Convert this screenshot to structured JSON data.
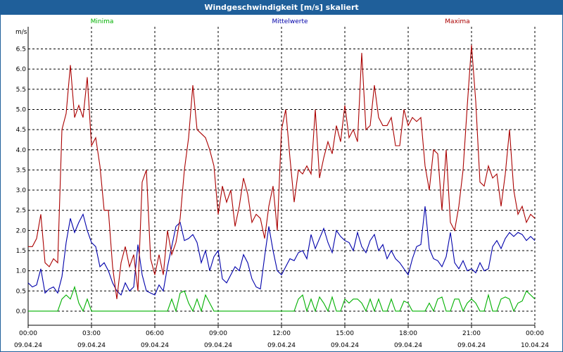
{
  "window_title": "Windgeschwindigkeit [m/s] skaliert",
  "chart_data": {
    "type": "line",
    "title": "Windgeschwindigkeit [m/s] skaliert",
    "ylabel": "m/s",
    "ylim": [
      -0.35,
      7.05
    ],
    "yticks": [
      "0.0",
      "0.5",
      "1.0",
      "1.5",
      "2.0",
      "2.5",
      "3.0",
      "3.5",
      "4.0",
      "4.5",
      "5.0",
      "5.5",
      "6.0",
      "6.5"
    ],
    "xlim": [
      0,
      24
    ],
    "xticks": [
      {
        "time": "00:00",
        "date": "09.04.24"
      },
      {
        "time": "03:00",
        "date": "09.04.24"
      },
      {
        "time": "06:00",
        "date": "09.04.24"
      },
      {
        "time": "09:00",
        "date": "09.04.24"
      },
      {
        "time": "12:00",
        "date": "09.04.24"
      },
      {
        "time": "15:00",
        "date": "09.04.24"
      },
      {
        "time": "18:00",
        "date": "09.04.24"
      },
      {
        "time": "21:00",
        "date": "09.04.24"
      },
      {
        "time": "00:00",
        "date": "10.04.24"
      }
    ],
    "grid": true,
    "series": [
      {
        "name": "Minima",
        "color": "#00b000",
        "x": [
          0,
          0.2,
          0.4,
          0.6,
          0.8,
          1,
          1.2,
          1.4,
          1.6,
          1.8,
          2,
          2.2,
          2.4,
          2.6,
          2.8,
          3,
          3.2,
          3.4,
          3.6,
          3.8,
          4,
          4.2,
          4.4,
          4.6,
          4.8,
          5,
          5.2,
          5.4,
          5.6,
          5.8,
          6,
          6.2,
          6.4,
          6.6,
          6.8,
          7,
          7.2,
          7.4,
          7.6,
          7.8,
          8,
          8.2,
          8.4,
          8.6,
          8.8,
          9,
          9.2,
          9.4,
          9.6,
          9.8,
          10,
          10.2,
          10.4,
          10.6,
          10.8,
          11,
          11.2,
          11.4,
          11.6,
          11.8,
          12,
          12.2,
          12.4,
          12.6,
          12.8,
          13,
          13.2,
          13.4,
          13.6,
          13.8,
          14,
          14.2,
          14.4,
          14.6,
          14.8,
          15,
          15.2,
          15.4,
          15.6,
          15.8,
          16,
          16.2,
          16.4,
          16.6,
          16.8,
          17,
          17.2,
          17.4,
          17.6,
          17.8,
          18,
          18.2,
          18.4,
          18.6,
          18.8,
          19,
          19.2,
          19.4,
          19.6,
          19.8,
          20,
          20.2,
          20.4,
          20.6,
          20.8,
          21,
          21.2,
          21.4,
          21.6,
          21.8,
          22,
          22.2,
          22.4,
          22.6,
          22.8,
          23,
          23.2,
          23.4,
          23.6,
          23.8,
          24
        ],
        "values": [
          0,
          0,
          0,
          0,
          0,
          0,
          0,
          0,
          0,
          0,
          0,
          0,
          0,
          0,
          0,
          0,
          0,
          0,
          0,
          0,
          0,
          0,
          0,
          0,
          0,
          0,
          0,
          0,
          0,
          0,
          0,
          0,
          0,
          0,
          0,
          0,
          0,
          0,
          0,
          0,
          0,
          0,
          0,
          0,
          0,
          0,
          0,
          0,
          0,
          0,
          0,
          0,
          0,
          0,
          0,
          0,
          0,
          0,
          0,
          0,
          0,
          0,
          0,
          0,
          0,
          0,
          0,
          0,
          0,
          0,
          0,
          0,
          0,
          0,
          0,
          0,
          0,
          0,
          0,
          0,
          0,
          0,
          0,
          0,
          0,
          0,
          0,
          0,
          0,
          0,
          0,
          0,
          0,
          0,
          0,
          0,
          0,
          0,
          0,
          0,
          0,
          0,
          0,
          0,
          0,
          0,
          0,
          0,
          0,
          0,
          0,
          0,
          0,
          0,
          0,
          0,
          0,
          0,
          0,
          0,
          0
        ]
      },
      {
        "name": "Mittelwerte",
        "color": "#0000aa",
        "x": [],
        "values": []
      },
      {
        "name": "Maxima",
        "color": "#aa0000",
        "x": [],
        "values": []
      }
    ]
  }
}
